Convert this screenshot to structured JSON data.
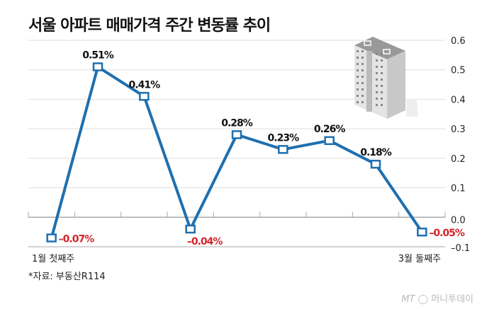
{
  "title": "서울 아파트 매매가격 주간 변동률 추이",
  "source": "*자료: 부동산R114",
  "logo": "MT 머니투데이",
  "chart_data": {
    "type": "line",
    "title": "서울 아파트 매매가격 주간 변동률 추이",
    "x_labels": [
      "1월 첫째주",
      "",
      "",
      "",
      "",
      "",
      "",
      "",
      "3월 둘째주"
    ],
    "values": [
      -0.07,
      0.51,
      0.41,
      -0.04,
      0.28,
      0.23,
      0.26,
      0.18,
      -0.05
    ],
    "data_labels": [
      "-0.07%",
      "0.51%",
      "0.41%",
      "-0.04%",
      "0.28%",
      "0.23%",
      "0.26%",
      "0.18%",
      "-0.05%"
    ],
    "ylim": [
      -0.1,
      0.6
    ],
    "yticks": [
      "0.6",
      "0.5",
      "0.4",
      "0.3",
      "0.2",
      "0.1",
      "0.0",
      "-0.1"
    ],
    "grid": true,
    "colors": {
      "line": "#1f6fae",
      "negative_label": "#d3242c",
      "positive_label": "#111111",
      "grid": "#dddddd"
    }
  }
}
